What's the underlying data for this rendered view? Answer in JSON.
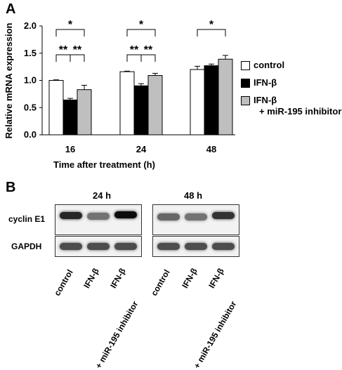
{
  "panels": {
    "a_label": "A",
    "b_label": "B"
  },
  "chart_data": {
    "type": "bar",
    "categories": [
      "16",
      "24",
      "48"
    ],
    "series": [
      {
        "name": "control",
        "values": [
          1.0,
          1.16,
          1.2
        ],
        "errors": [
          0.01,
          0.01,
          0.06
        ],
        "color": "#ffffff"
      },
      {
        "name": "IFN-β",
        "values": [
          0.64,
          0.9,
          1.27
        ],
        "errors": [
          0.03,
          0.04,
          0.03
        ],
        "color": "#000000"
      },
      {
        "name": "IFN-β\n+ miR-195 inhibitor",
        "values": [
          0.83,
          1.09,
          1.39
        ],
        "errors": [
          0.08,
          0.04,
          0.07
        ],
        "color": "#bfbfbf"
      }
    ],
    "ylabel": "Relative mRNA expression",
    "xlabel": "Time after treatment (h)",
    "ylim": [
      0,
      2.0
    ],
    "yticks": [
      "0.0",
      "0.5",
      "1.0",
      "1.5",
      "2.0"
    ],
    "grid": false,
    "legend_position": "right",
    "significance": [
      {
        "group": 0,
        "from": 0,
        "to": 2,
        "text": "*",
        "level": "top"
      },
      {
        "group": 0,
        "from": 0,
        "to": 1,
        "text": "**",
        "level": "low"
      },
      {
        "group": 0,
        "from": 1,
        "to": 2,
        "text": "**",
        "level": "low"
      },
      {
        "group": 1,
        "from": 0,
        "to": 2,
        "text": "*",
        "level": "top"
      },
      {
        "group": 1,
        "from": 0,
        "to": 1,
        "text": "**",
        "level": "low"
      },
      {
        "group": 1,
        "from": 1,
        "to": 2,
        "text": "**",
        "level": "low"
      },
      {
        "group": 2,
        "from": 0,
        "to": 2,
        "text": "*",
        "level": "top"
      }
    ]
  },
  "legend": {
    "control": "control",
    "ifn": "IFN-β",
    "ifn_inh_1": "IFN-β",
    "ifn_inh_2": "+ miR-195 inhibitor"
  },
  "blot": {
    "time_24": "24 h",
    "time_48": "48 h",
    "row_cyclin": "cyclin E1",
    "row_gapdh": "GAPDH",
    "lanes_24": [
      "control",
      "IFN-β",
      "IFN-β",
      "+ miR-195 inhibitor"
    ],
    "lanes_48": [
      "control",
      "IFN-β",
      "IFN-β",
      "+ miR-195 inhibitor"
    ],
    "cyclin_24_intensity": [
      0.85,
      0.55,
      0.95
    ],
    "cyclin_48_intensity": [
      0.6,
      0.55,
      0.8
    ],
    "gapdh_intensity": [
      0.7,
      0.7,
      0.7
    ]
  }
}
